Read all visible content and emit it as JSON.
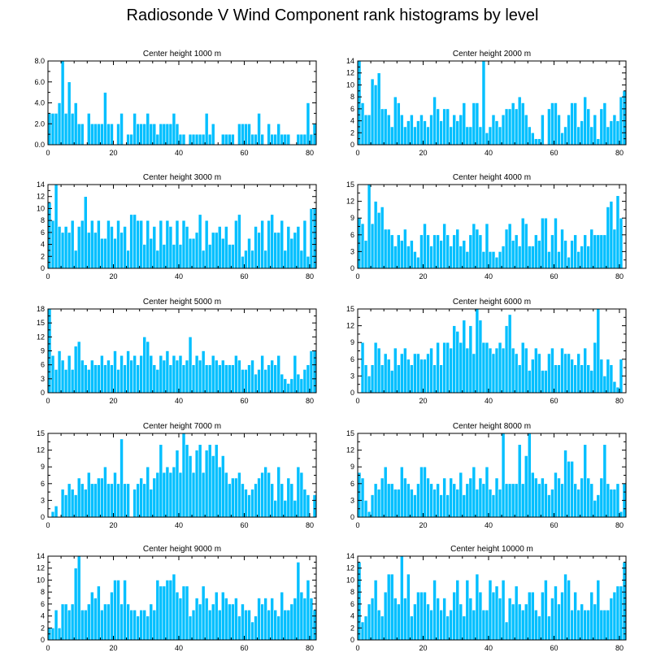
{
  "figure": {
    "title": "Radiosonde V Wind Component rank histograms by level",
    "bar_color": "#00bfff",
    "bar_edge_color": "#ffffff",
    "frame_color": "#000000"
  },
  "chart_data": [
    {
      "type": "bar",
      "title": "Center height 1000 m",
      "xlim": [
        0,
        82
      ],
      "ylim": [
        0,
        8
      ],
      "xticks": [
        0,
        20,
        40,
        60,
        80
      ],
      "yticks": [
        0,
        2,
        4,
        6,
        8
      ],
      "ytick_labels": [
        "0.0",
        "2.0",
        "4.0",
        "6.0",
        "8.0"
      ],
      "values": [
        3,
        3,
        3,
        4,
        8,
        3,
        6,
        3,
        4,
        2,
        2,
        0,
        3,
        2,
        2,
        2,
        2,
        5,
        2,
        2,
        0,
        2,
        3,
        0,
        1,
        1,
        3,
        2,
        2,
        2,
        3,
        2,
        2,
        1,
        2,
        2,
        2,
        2,
        3,
        2,
        1,
        1,
        0,
        1,
        1,
        1,
        1,
        1,
        3,
        1,
        2,
        0,
        0,
        1,
        1,
        1,
        1,
        0,
        2,
        2,
        2,
        2,
        1,
        1,
        3,
        1,
        0,
        2,
        1,
        1,
        2,
        1,
        1,
        1,
        0,
        0,
        1,
        1,
        1,
        4,
        1,
        2
      ]
    },
    {
      "type": "bar",
      "title": "Center height 2000 m",
      "xlim": [
        0,
        82
      ],
      "ylim": [
        0,
        14
      ],
      "xticks": [
        0,
        20,
        40,
        60,
        80
      ],
      "yticks": [
        0,
        2,
        4,
        6,
        8,
        10,
        12,
        14
      ],
      "ytick_labels": [
        "0",
        "2",
        "4",
        "6",
        "8",
        "10",
        "12",
        "14"
      ],
      "values": [
        14,
        7,
        5,
        5,
        11,
        10,
        12,
        6,
        6,
        5,
        3,
        8,
        7,
        5,
        3,
        4,
        5,
        3,
        4,
        5,
        4,
        3,
        5,
        8,
        6,
        4,
        6,
        6,
        3,
        5,
        4,
        5,
        7,
        3,
        3,
        7,
        7,
        3,
        14,
        2,
        3,
        5,
        4,
        3,
        5,
        6,
        6,
        7,
        6,
        8,
        7,
        5,
        3,
        2,
        1,
        1,
        5,
        0,
        6,
        7,
        7,
        5,
        2,
        3,
        5,
        7,
        7,
        3,
        4,
        8,
        6,
        3,
        5,
        1,
        6,
        7,
        3,
        4,
        5,
        4,
        8,
        9
      ]
    },
    {
      "type": "bar",
      "title": "Center height 3000 m",
      "xlim": [
        0,
        82
      ],
      "ylim": [
        0,
        14
      ],
      "xticks": [
        0,
        20,
        40,
        60,
        80
      ],
      "yticks": [
        0,
        2,
        4,
        6,
        8,
        10,
        12,
        14
      ],
      "ytick_labels": [
        "0",
        "2",
        "4",
        "6",
        "8",
        "10",
        "12",
        "14"
      ],
      "values": [
        11,
        8,
        14,
        7,
        6,
        7,
        6,
        8,
        3,
        7,
        8,
        12,
        6,
        8,
        6,
        8,
        5,
        5,
        8,
        7,
        5,
        8,
        6,
        7,
        3,
        9,
        9,
        8,
        8,
        4,
        8,
        5,
        7,
        3,
        8,
        4,
        8,
        7,
        4,
        8,
        4,
        8,
        7,
        5,
        5,
        6,
        9,
        3,
        8,
        4,
        6,
        6,
        7,
        5,
        7,
        4,
        4,
        8,
        9,
        2,
        3,
        5,
        3,
        7,
        6,
        8,
        3,
        8,
        9,
        6,
        6,
        8,
        3,
        7,
        5,
        6,
        7,
        3,
        8,
        2,
        10,
        10
      ]
    },
    {
      "type": "bar",
      "title": "Center height 4000 m",
      "xlim": [
        0,
        82
      ],
      "ylim": [
        0,
        15
      ],
      "xticks": [
        0,
        20,
        40,
        60,
        80
      ],
      "yticks": [
        0,
        3,
        6,
        9,
        12,
        15
      ],
      "ytick_labels": [
        "0",
        "3",
        "6",
        "9",
        "12",
        "15"
      ],
      "values": [
        9,
        8,
        5,
        15,
        8,
        12,
        10,
        11,
        7,
        7,
        6,
        4,
        6,
        5,
        7,
        4,
        5,
        3,
        2,
        6,
        8,
        6,
        4,
        6,
        6,
        5,
        8,
        6,
        4,
        6,
        7,
        4,
        5,
        3,
        6,
        8,
        7,
        6,
        3,
        8,
        3,
        3,
        2,
        3,
        4,
        7,
        8,
        5,
        6,
        4,
        9,
        8,
        4,
        4,
        6,
        5,
        9,
        9,
        3,
        6,
        9,
        3,
        7,
        5,
        2,
        5,
        6,
        3,
        4,
        6,
        4,
        7,
        6,
        6,
        6,
        6,
        11,
        12,
        7,
        13,
        9,
        0
      ]
    },
    {
      "type": "bar",
      "title": "Center height 5000 m",
      "xlim": [
        0,
        82
      ],
      "ylim": [
        0,
        18
      ],
      "xticks": [
        0,
        20,
        40,
        60,
        80
      ],
      "yticks": [
        0,
        3,
        6,
        9,
        12,
        15,
        18
      ],
      "ytick_labels": [
        "0",
        "3",
        "6",
        "9",
        "12",
        "15",
        "18"
      ],
      "values": [
        18,
        8,
        5,
        9,
        7,
        5,
        8,
        5,
        10,
        11,
        7,
        6,
        5,
        7,
        6,
        6,
        8,
        6,
        7,
        6,
        9,
        5,
        8,
        6,
        9,
        7,
        8,
        6,
        8,
        12,
        11,
        8,
        6,
        5,
        8,
        7,
        9,
        6,
        8,
        7,
        8,
        6,
        7,
        12,
        6,
        8,
        7,
        9,
        6,
        6,
        8,
        7,
        6,
        7,
        6,
        6,
        6,
        8,
        7,
        5,
        5,
        6,
        7,
        4,
        5,
        8,
        5,
        6,
        7,
        6,
        8,
        4,
        3,
        2,
        3,
        8,
        4,
        3,
        5,
        6,
        9,
        9
      ]
    },
    {
      "type": "bar",
      "title": "Center height 6000 m",
      "xlim": [
        0,
        82
      ],
      "ylim": [
        0,
        15
      ],
      "xticks": [
        0,
        20,
        40,
        60,
        80
      ],
      "yticks": [
        0,
        3,
        6,
        9,
        12,
        15
      ],
      "ytick_labels": [
        "0",
        "3",
        "6",
        "9",
        "12",
        "15"
      ],
      "values": [
        0,
        9,
        5,
        3,
        5,
        9,
        8,
        5,
        7,
        6,
        4,
        8,
        5,
        7,
        8,
        6,
        5,
        7,
        7,
        6,
        6,
        7,
        8,
        5,
        9,
        5,
        9,
        9,
        8,
        12,
        11,
        9,
        13,
        8,
        12,
        7,
        15,
        13,
        9,
        9,
        8,
        7,
        8,
        9,
        8,
        12,
        14,
        8,
        7,
        5,
        9,
        8,
        4,
        6,
        8,
        7,
        4,
        4,
        7,
        8,
        5,
        5,
        8,
        7,
        7,
        6,
        5,
        7,
        5,
        8,
        5,
        4,
        9,
        15,
        6,
        3,
        6,
        5,
        2,
        1,
        6,
        0
      ]
    },
    {
      "type": "bar",
      "title": "Center height 7000 m",
      "xlim": [
        0,
        82
      ],
      "ylim": [
        0,
        15
      ],
      "xticks": [
        0,
        20,
        40,
        60,
        80
      ],
      "yticks": [
        0,
        3,
        6,
        9,
        12,
        15
      ],
      "ytick_labels": [
        "0",
        "3",
        "6",
        "9",
        "12",
        "15"
      ],
      "values": [
        0,
        1,
        2,
        0,
        5,
        4,
        6,
        5,
        4,
        7,
        6,
        5,
        8,
        6,
        6,
        7,
        7,
        9,
        6,
        6,
        8,
        6,
        14,
        6,
        6,
        0,
        5,
        6,
        7,
        6,
        9,
        5,
        7,
        8,
        13,
        8,
        9,
        8,
        9,
        12,
        8,
        15,
        13,
        11,
        8,
        12,
        13,
        8,
        12,
        13,
        11,
        13,
        9,
        11,
        8,
        6,
        7,
        7,
        8,
        6,
        5,
        4,
        5,
        6,
        7,
        8,
        9,
        8,
        6,
        3,
        9,
        6,
        3,
        7,
        6,
        3,
        9,
        8,
        5,
        4,
        0,
        4
      ]
    },
    {
      "type": "bar",
      "title": "Center height 8000 m",
      "xlim": [
        0,
        82
      ],
      "ylim": [
        0,
        15
      ],
      "xticks": [
        0,
        20,
        40,
        60,
        80
      ],
      "yticks": [
        0,
        3,
        6,
        9,
        12,
        15
      ],
      "ytick_labels": [
        "0",
        "3",
        "6",
        "9",
        "12",
        "15"
      ],
      "values": [
        8,
        7,
        3,
        1,
        4,
        6,
        5,
        7,
        9,
        6,
        6,
        5,
        5,
        9,
        7,
        6,
        5,
        4,
        6,
        9,
        9,
        7,
        6,
        5,
        6,
        4,
        7,
        4,
        7,
        6,
        5,
        8,
        4,
        6,
        7,
        9,
        5,
        7,
        6,
        9,
        5,
        4,
        7,
        5,
        15,
        6,
        6,
        6,
        6,
        13,
        6,
        11,
        15,
        8,
        7,
        6,
        7,
        6,
        4,
        5,
        8,
        7,
        6,
        12,
        10,
        10,
        6,
        5,
        7,
        13,
        7,
        6,
        3,
        4,
        7,
        13,
        6,
        5,
        5,
        6,
        1,
        6
      ]
    },
    {
      "type": "bar",
      "title": "Center height 9000 m",
      "xlim": [
        0,
        82
      ],
      "ylim": [
        0,
        14
      ],
      "xticks": [
        0,
        20,
        40,
        60,
        80
      ],
      "yticks": [
        0,
        2,
        4,
        6,
        8,
        10,
        12,
        14
      ],
      "ytick_labels": [
        "0",
        "2",
        "4",
        "6",
        "8",
        "10",
        "12",
        "14"
      ],
      "values": [
        2,
        2,
        5,
        2,
        6,
        6,
        5,
        6,
        12,
        14,
        5,
        5,
        6,
        8,
        7,
        9,
        5,
        6,
        6,
        8,
        10,
        10,
        6,
        10,
        6,
        5,
        5,
        4,
        5,
        5,
        4,
        6,
        5,
        10,
        9,
        9,
        10,
        10,
        11,
        8,
        7,
        9,
        9,
        4,
        5,
        7,
        6,
        9,
        7,
        5,
        6,
        8,
        5,
        8,
        7,
        6,
        6,
        7,
        4,
        6,
        5,
        5,
        3,
        4,
        7,
        6,
        7,
        5,
        7,
        5,
        4,
        8,
        5,
        5,
        6,
        7,
        13,
        8,
        7,
        10,
        7,
        5
      ]
    },
    {
      "type": "bar",
      "title": "Center height 10000 m",
      "xlim": [
        0,
        82
      ],
      "ylim": [
        0,
        14
      ],
      "xticks": [
        0,
        20,
        40,
        60,
        80
      ],
      "yticks": [
        0,
        2,
        4,
        6,
        8,
        10,
        12,
        14
      ],
      "ytick_labels": [
        "0",
        "2",
        "4",
        "6",
        "8",
        "10",
        "12",
        "14"
      ],
      "values": [
        13,
        3,
        4,
        6,
        7,
        10,
        5,
        4,
        8,
        11,
        11,
        7,
        6,
        14,
        7,
        11,
        4,
        6,
        8,
        8,
        8,
        6,
        5,
        10,
        7,
        5,
        7,
        4,
        5,
        8,
        10,
        6,
        4,
        10,
        7,
        5,
        11,
        8,
        5,
        5,
        10,
        8,
        9,
        7,
        10,
        3,
        7,
        6,
        9,
        6,
        5,
        6,
        8,
        8,
        5,
        4,
        8,
        10,
        4,
        7,
        9,
        6,
        8,
        11,
        10,
        5,
        8,
        5,
        6,
        5,
        5,
        8,
        6,
        10,
        5,
        5,
        5,
        7,
        8,
        9,
        9,
        13
      ]
    }
  ]
}
